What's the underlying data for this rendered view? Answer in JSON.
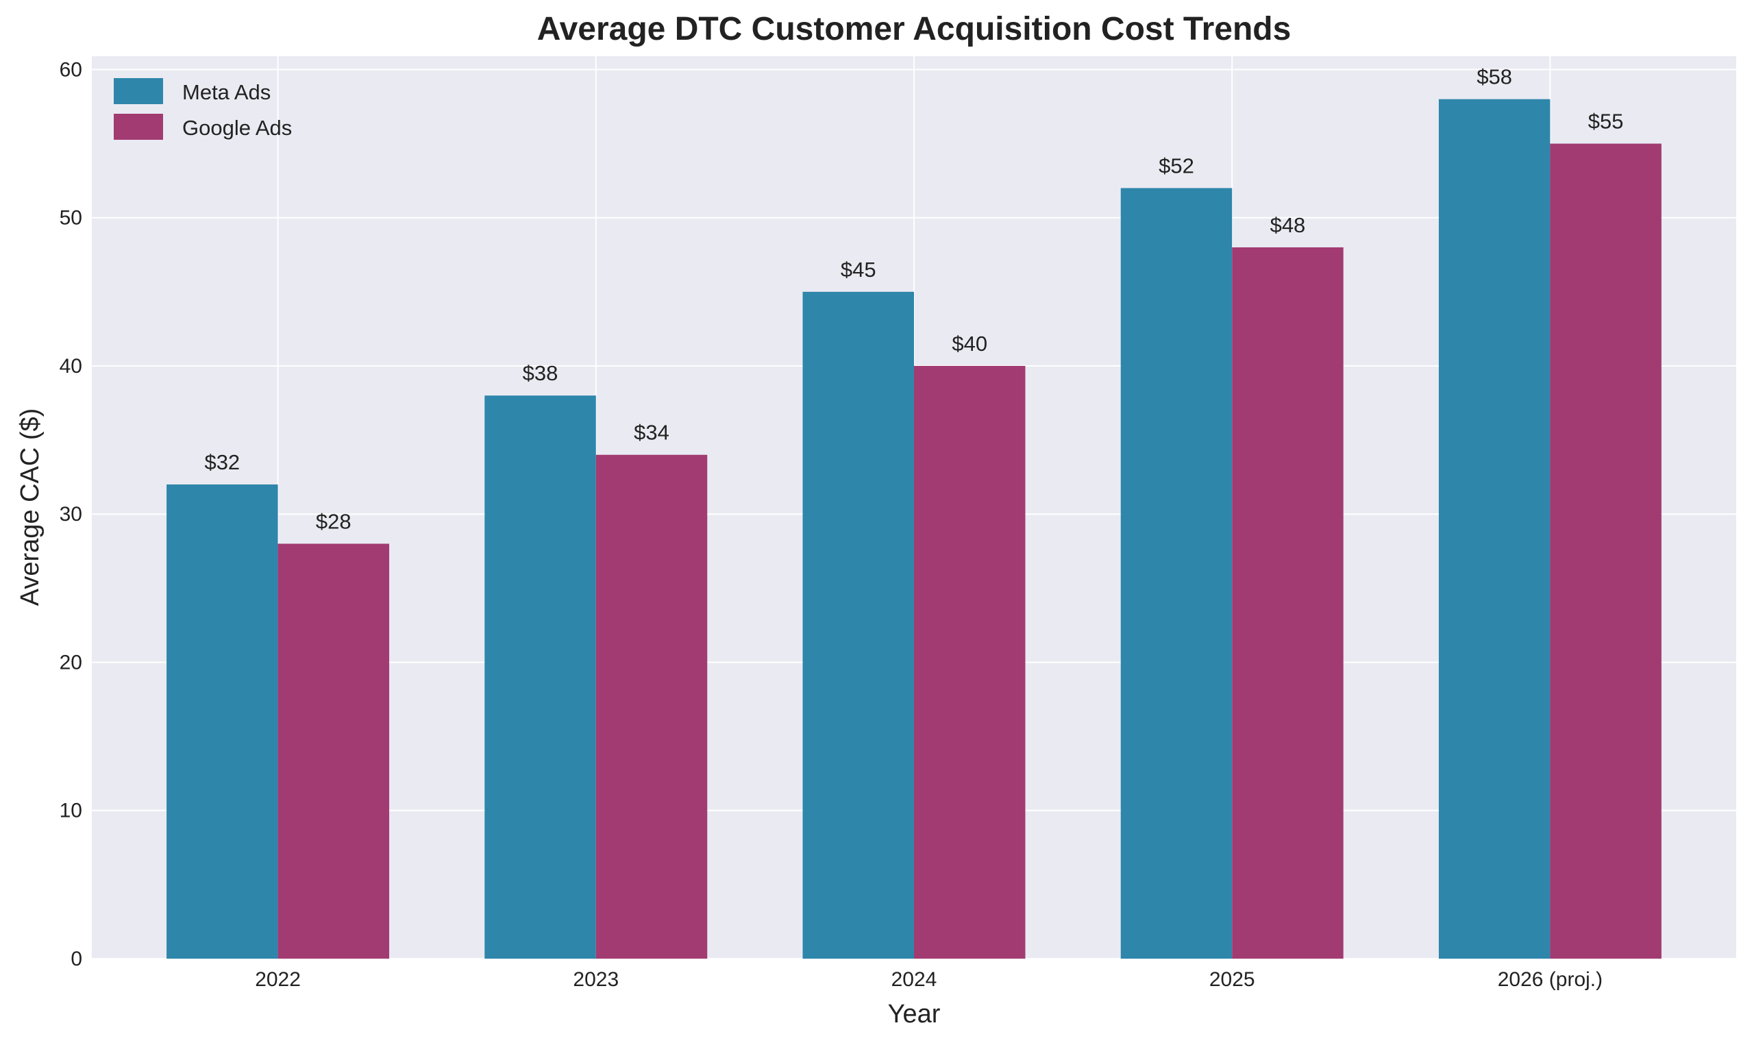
{
  "chart_data": {
    "type": "bar",
    "title": "Average DTC Customer Acquisition Cost Trends",
    "xlabel": "Year",
    "ylabel": "Average CAC ($)",
    "categories": [
      "2022",
      "2023",
      "2024",
      "2025",
      "2026 (proj.)"
    ],
    "series": [
      {
        "name": "Meta Ads",
        "values": [
          32,
          38,
          45,
          52,
          58
        ],
        "labels": [
          "$32",
          "$38",
          "$45",
          "$52",
          "$58"
        ],
        "color": "#2e86ab"
      },
      {
        "name": "Google Ads",
        "values": [
          28,
          34,
          40,
          48,
          55
        ],
        "labels": [
          "$28",
          "$34",
          "$40",
          "$48",
          "$55"
        ],
        "color": "#a23b72"
      }
    ],
    "ylim": [
      0,
      60.9
    ],
    "yticks": [
      0,
      10,
      20,
      30,
      40,
      50,
      60
    ],
    "grid": true,
    "legend_position": "top-left",
    "background": "#eaeaf2"
  }
}
